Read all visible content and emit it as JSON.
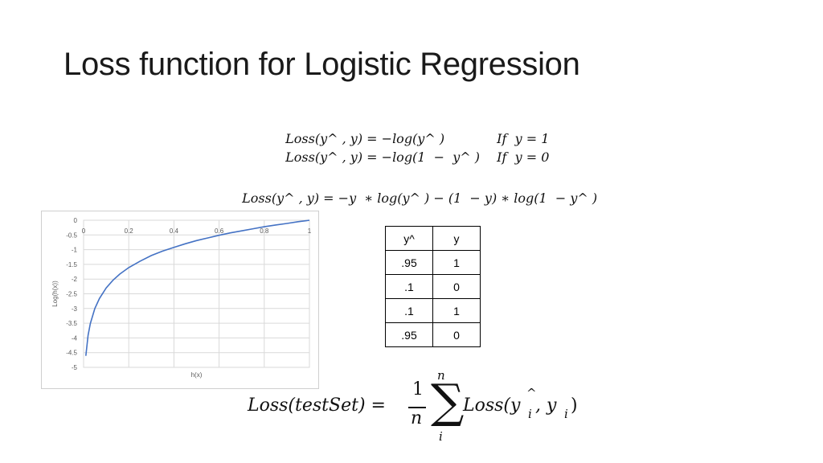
{
  "slide": {
    "title": "Loss function for Logistic Regression"
  },
  "equations": {
    "line1_lhs": "Loss(y^ , y) = −log(y^ )",
    "line1_cond": "If  y = 1",
    "line2_lhs": "Loss(y^ , y) = −log(1  −  y^ )",
    "line2_cond": "If  y = 0",
    "combined": "Loss(y^ , y) = −y  ∗ log(y^ ) − (1  − y) ∗ log(1  − y^ )"
  },
  "test_set_equation": {
    "lhs": "Loss(testSet) =",
    "fraction_numerator": "1",
    "fraction_denominator": "n",
    "sum_symbol": "∑",
    "sum_upper": "n",
    "sum_lower": "i",
    "rhs": "Loss(y",
    "rhs_hat": "^",
    "rhs_sub": "i",
    "rhs_rest": ", y",
    "rhs_sub2": "i",
    "rhs_close": ")"
  },
  "table": {
    "headers": [
      "y^",
      "y"
    ],
    "rows": [
      [
        ".95",
        "1"
      ],
      [
        ".1",
        "0"
      ],
      [
        ".1",
        "1"
      ],
      [
        ".95",
        "0"
      ]
    ]
  },
  "chart_data": {
    "type": "line",
    "title": "",
    "xlabel": "h(x)",
    "ylabel": "Log(h(x))",
    "xlim": [
      0,
      1
    ],
    "ylim": [
      -5,
      0
    ],
    "x_ticks": [
      "0",
      "0.2",
      "0.4",
      "0.6",
      "0.8",
      "1"
    ],
    "y_ticks": [
      "0",
      "-0.5",
      "-1",
      "-1.5",
      "-2",
      "-2.5",
      "-3",
      "-3.5",
      "-4",
      "-4.5",
      "-5"
    ],
    "grid": true,
    "series": [
      {
        "color": "#4472c4",
        "x": [
          0.01,
          0.02,
          0.03,
          0.05,
          0.07,
          0.1,
          0.13,
          0.16,
          0.2,
          0.25,
          0.3,
          0.35,
          0.4,
          0.45,
          0.5,
          0.55,
          0.6,
          0.65,
          0.7,
          0.75,
          0.8,
          0.85,
          0.9,
          0.95,
          1.0
        ],
        "y": [
          -4.61,
          -3.91,
          -3.51,
          -3.0,
          -2.66,
          -2.3,
          -2.04,
          -1.83,
          -1.61,
          -1.39,
          -1.2,
          -1.05,
          -0.92,
          -0.8,
          -0.69,
          -0.6,
          -0.51,
          -0.43,
          -0.36,
          -0.29,
          -0.22,
          -0.16,
          -0.11,
          -0.05,
          0.0
        ]
      }
    ]
  }
}
